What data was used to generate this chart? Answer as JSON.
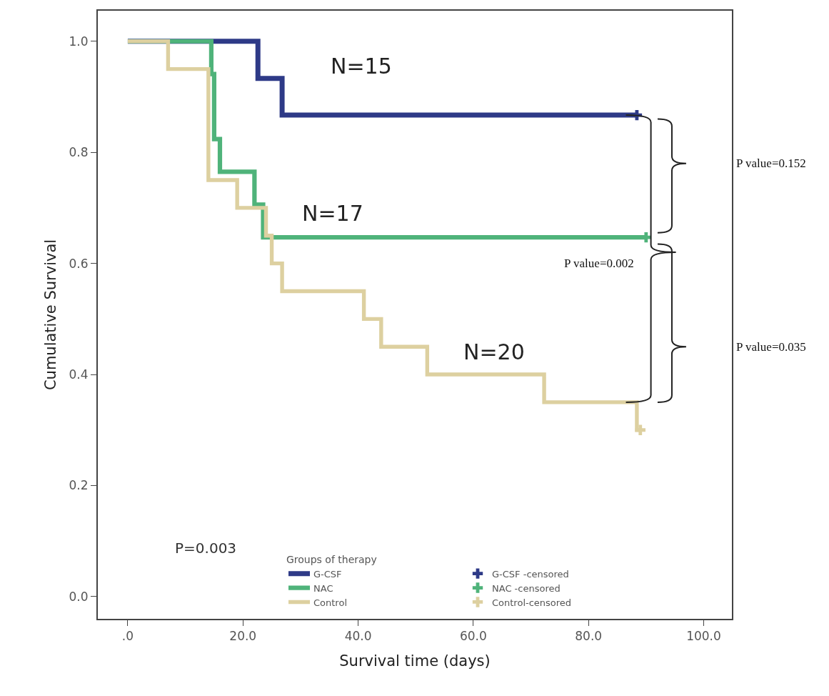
{
  "chart_data": {
    "type": "step",
    "xlabel": "Survival time (days)",
    "ylabel": "Cumulative Survival",
    "legend_title": "Groups of therapy",
    "xlim": [
      -5.2,
      104.9
    ],
    "ylim": [
      -0.04,
      1.055
    ],
    "xticks": [
      {
        "value": 0,
        "label": ".0"
      },
      {
        "value": 20,
        "label": "20.0"
      },
      {
        "value": 40,
        "label": "40.0"
      },
      {
        "value": 60,
        "label": "60.0"
      },
      {
        "value": 80,
        "label": "80.0"
      },
      {
        "value": 100,
        "label": "100.0"
      }
    ],
    "yticks": [
      {
        "value": 0,
        "label": "0.0"
      },
      {
        "value": 0.2,
        "label": "0.2"
      },
      {
        "value": 0.4,
        "label": "0.4"
      },
      {
        "value": 0.6,
        "label": "0.6"
      },
      {
        "value": 0.8,
        "label": "0.8"
      },
      {
        "value": 1,
        "label": "1.0"
      }
    ],
    "grid": false,
    "legend": "bottom right",
    "line_style": "solid",
    "series": [
      {
        "name": "G-CSF",
        "color": "#2e3a87",
        "x": [
          0,
          22.6,
          26.8,
          88.4
        ],
        "values": [
          1,
          0.933,
          0.867,
          0.867
        ]
      },
      {
        "name": "NAC",
        "color": "#4fb37a",
        "x": [
          0,
          14.5,
          15,
          16,
          22,
          23.5,
          90
        ],
        "values": [
          1,
          0.941,
          0.824,
          0.765,
          0.706,
          0.647,
          0.647
        ]
      },
      {
        "name": "Control",
        "color": "#ddd0a0",
        "x": [
          0,
          7,
          14,
          19,
          24,
          25,
          26.8,
          41,
          44,
          52,
          72.3,
          88.4,
          89
        ],
        "values": [
          1,
          0.95,
          0.75,
          0.7,
          0.65,
          0.6,
          0.55,
          0.5,
          0.45,
          0.4,
          0.35,
          0.3,
          0.3
        ]
      },
      {
        "name": "G-CSF -censored",
        "type": "scatter",
        "marker": "cross",
        "color": "#2e3a87",
        "x": [
          88.4
        ],
        "values": [
          0.867
        ]
      },
      {
        "name": "NAC -censored",
        "type": "scatter",
        "marker": "cross",
        "color": "#4fb37a",
        "x": [
          90
        ],
        "values": [
          0.647
        ]
      },
      {
        "name": "Control-censored",
        "type": "scatter",
        "marker": "cross",
        "color": "#ddd0a0",
        "x": [
          89
        ],
        "values": [
          0.3
        ]
      }
    ],
    "annotations": [
      "N=15",
      "N=17",
      "N=20",
      "P=0.003",
      "P value=0.002",
      "P value=0.152",
      "P value=0.035"
    ]
  }
}
